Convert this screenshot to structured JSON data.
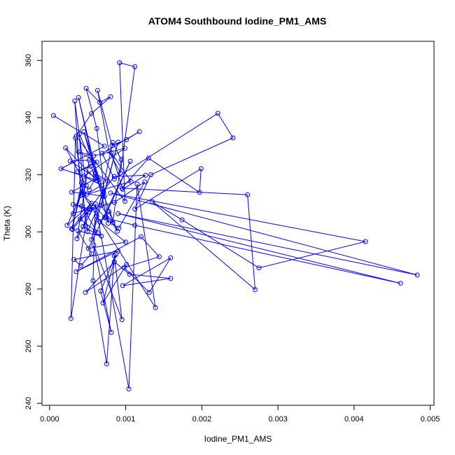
{
  "chart_data": {
    "type": "line",
    "title": "ATOM4 Southbound Iodine_PM1_AMS",
    "xlabel": "Iodine_PM1_AMS",
    "ylabel": "Theta (K)",
    "xlim": [
      -0.0001,
      0.00505
    ],
    "ylim": [
      239.3,
      366.7
    ],
    "x_ticks": [
      0.0,
      0.001,
      0.002,
      0.003,
      0.004,
      0.005
    ],
    "x_tick_labels": [
      "0.000",
      "0.001",
      "0.002",
      "0.003",
      "0.004",
      "0.005"
    ],
    "y_ticks": [
      240,
      260,
      280,
      300,
      320,
      340,
      360
    ],
    "y_tick_labels": [
      "240",
      "260",
      "280",
      "300",
      "320",
      "340",
      "360"
    ],
    "grid": false,
    "legend": "none",
    "color": "#0000ff",
    "series": [
      {
        "points": [
          [
            5e-05,
            340.7
          ],
          [
            0.00072,
            330.0
          ],
          [
            0.00015,
            322.1
          ],
          [
            0.00062,
            318.0
          ],
          [
            0.00021,
            329.4
          ],
          [
            0.00048,
            316.3
          ],
          [
            0.00033,
            345.8
          ],
          [
            0.00041,
            312.7
          ],
          [
            0.00023,
            302.3
          ],
          [
            0.00055,
            310.0
          ],
          [
            0.00029,
            301.1
          ],
          [
            0.00043,
            315.2
          ],
          [
            0.00031,
            306.4
          ],
          [
            0.00058,
            308.6
          ],
          [
            0.00036,
            297.6
          ],
          [
            0.00052,
            325.1
          ],
          [
            0.00027,
            324.8
          ],
          [
            0.00065,
            318.2
          ],
          [
            0.00039,
            334.3
          ],
          [
            0.00047,
            302.1
          ],
          [
            0.00028,
            269.7
          ],
          [
            0.00034,
            332.8
          ],
          [
            0.0005,
            300.1
          ],
          [
            0.00071,
            313.9
          ],
          [
            0.00045,
            335.0
          ],
          [
            0.0006,
            320.6
          ],
          [
            0.00038,
            347.0
          ],
          [
            0.00077,
            303.0
          ],
          [
            0.00062,
            336.2
          ],
          [
            0.00048,
            350.2
          ],
          [
            0.00066,
            345.3
          ],
          [
            0.0008,
            347.3
          ],
          [
            0.00055,
            341.4
          ],
          [
            0.00035,
            333.5
          ],
          [
            0.00099,
            310.7
          ],
          [
            0.00092,
            359.2
          ],
          [
            0.00112,
            357.8
          ],
          [
            0.00093,
            320.6
          ],
          [
            0.00078,
            328.3
          ],
          [
            0.00063,
            349.5
          ],
          [
            0.00082,
            330.2
          ],
          [
            0.00101,
            332.3
          ],
          [
            0.00118,
            335.1
          ],
          [
            0.00069,
            327.5
          ],
          [
            0.00085,
            318.5
          ],
          [
            0.00221,
            341.5
          ],
          [
            0.00241,
            332.9
          ],
          [
            0.00133,
            320.0
          ],
          [
            0.00112,
            308.0
          ],
          [
            0.00199,
            322.1
          ],
          [
            0.00197,
            313.8
          ],
          [
            0.0013,
            325.8
          ],
          [
            0.00095,
            315.3
          ],
          [
            0.0026,
            313.0
          ],
          [
            0.0027,
            279.8
          ],
          [
            0.00135,
            310.5
          ],
          [
            0.00174,
            304.2
          ],
          [
            0.00275,
            287.4
          ],
          [
            0.00415,
            296.6
          ],
          [
            0.0008,
            313.6
          ],
          [
            0.00483,
            284.9
          ],
          [
            0.0009,
            306.4
          ],
          [
            0.00461,
            282.0
          ],
          [
            0.00112,
            302.3
          ],
          [
            0.00074,
            304.8
          ],
          [
            0.00044,
            313.1
          ],
          [
            0.00139,
            273.5
          ],
          [
            0.00115,
            316.7
          ],
          [
            0.00104,
            245.0
          ],
          [
            0.0006,
            309.8
          ],
          [
            0.00057,
            282.9
          ],
          [
            0.00075,
            253.8
          ],
          [
            0.00085,
            291.6
          ],
          [
            0.00095,
            269.3
          ],
          [
            0.00058,
            295.4
          ],
          [
            0.00081,
            264.8
          ],
          [
            0.00067,
            279.3
          ],
          [
            0.00087,
            292.1
          ],
          [
            0.0007,
            275.1
          ],
          [
            0.00101,
            288.6
          ],
          [
            0.00047,
            278.8
          ],
          [
            0.00085,
            289.5
          ],
          [
            0.00105,
            285.2
          ],
          [
            0.00159,
            283.7
          ],
          [
            0.00096,
            281.2
          ],
          [
            0.00159,
            290.9
          ],
          [
            0.00131,
            278.8
          ],
          [
            0.00098,
            287.5
          ],
          [
            0.00144,
            291.3
          ],
          [
            0.0012,
            298.3
          ],
          [
            0.00035,
            286.1
          ],
          [
            0.0009,
            293.3
          ],
          [
            0.00032,
            290.3
          ],
          [
            0.00041,
            288.2
          ],
          [
            0.00055,
            292.4
          ],
          [
            0.00037,
            300.4
          ],
          [
            0.00068,
            298.5
          ],
          [
            0.00044,
            301.9
          ],
          [
            0.00051,
            306.9
          ],
          [
            0.0004,
            304.5
          ],
          [
            0.00063,
            299.7
          ],
          [
            0.00042,
            309.0
          ],
          [
            0.00031,
            309.6
          ],
          [
            0.00053,
            307.9
          ],
          [
            0.0003,
            300.9
          ],
          [
            0.00042,
            317.2
          ],
          [
            0.00052,
            314.8
          ],
          [
            0.0006,
            318.6
          ],
          [
            0.00029,
            313.9
          ],
          [
            0.00045,
            313.5
          ],
          [
            0.00072,
            312.4
          ],
          [
            0.00054,
            323.0
          ],
          [
            0.00037,
            321.1
          ],
          [
            0.00062,
            324.4
          ],
          [
            0.00038,
            328.0
          ],
          [
            0.00058,
            326.6
          ],
          [
            0.00099,
            329.3
          ],
          [
            0.00045,
            319.5
          ],
          [
            0.00068,
            316.3
          ],
          [
            0.00049,
            313.2
          ],
          [
            0.00107,
            317.6
          ],
          [
            0.00081,
            327.7
          ],
          [
            0.00096,
            314.9
          ],
          [
            0.00126,
            319.8
          ],
          [
            0.00085,
            319.4
          ],
          [
            0.00052,
            307.9
          ],
          [
            0.00085,
            310.3
          ],
          [
            0.00125,
            317.5
          ],
          [
            0.00091,
            301.3
          ],
          [
            0.00072,
            305.0
          ],
          [
            0.00106,
            324.7
          ],
          [
            0.00051,
            294.2
          ],
          [
            0.001,
            296.4
          ],
          [
            0.00066,
            303.6
          ],
          [
            0.00078,
            307.1
          ],
          [
            0.00083,
            303.2
          ],
          [
            0.00094,
            325.3
          ],
          [
            0.00083,
            331.3
          ],
          [
            0.00062,
            305.5
          ],
          [
            0.00055,
            297.3
          ],
          [
            0.0009,
            331.4
          ],
          [
            0.00068,
            309.2
          ],
          [
            0.00089,
            300.2
          ],
          [
            0.0006,
            320.4
          ],
          [
            0.00076,
            317.9
          ]
        ]
      }
    ]
  }
}
